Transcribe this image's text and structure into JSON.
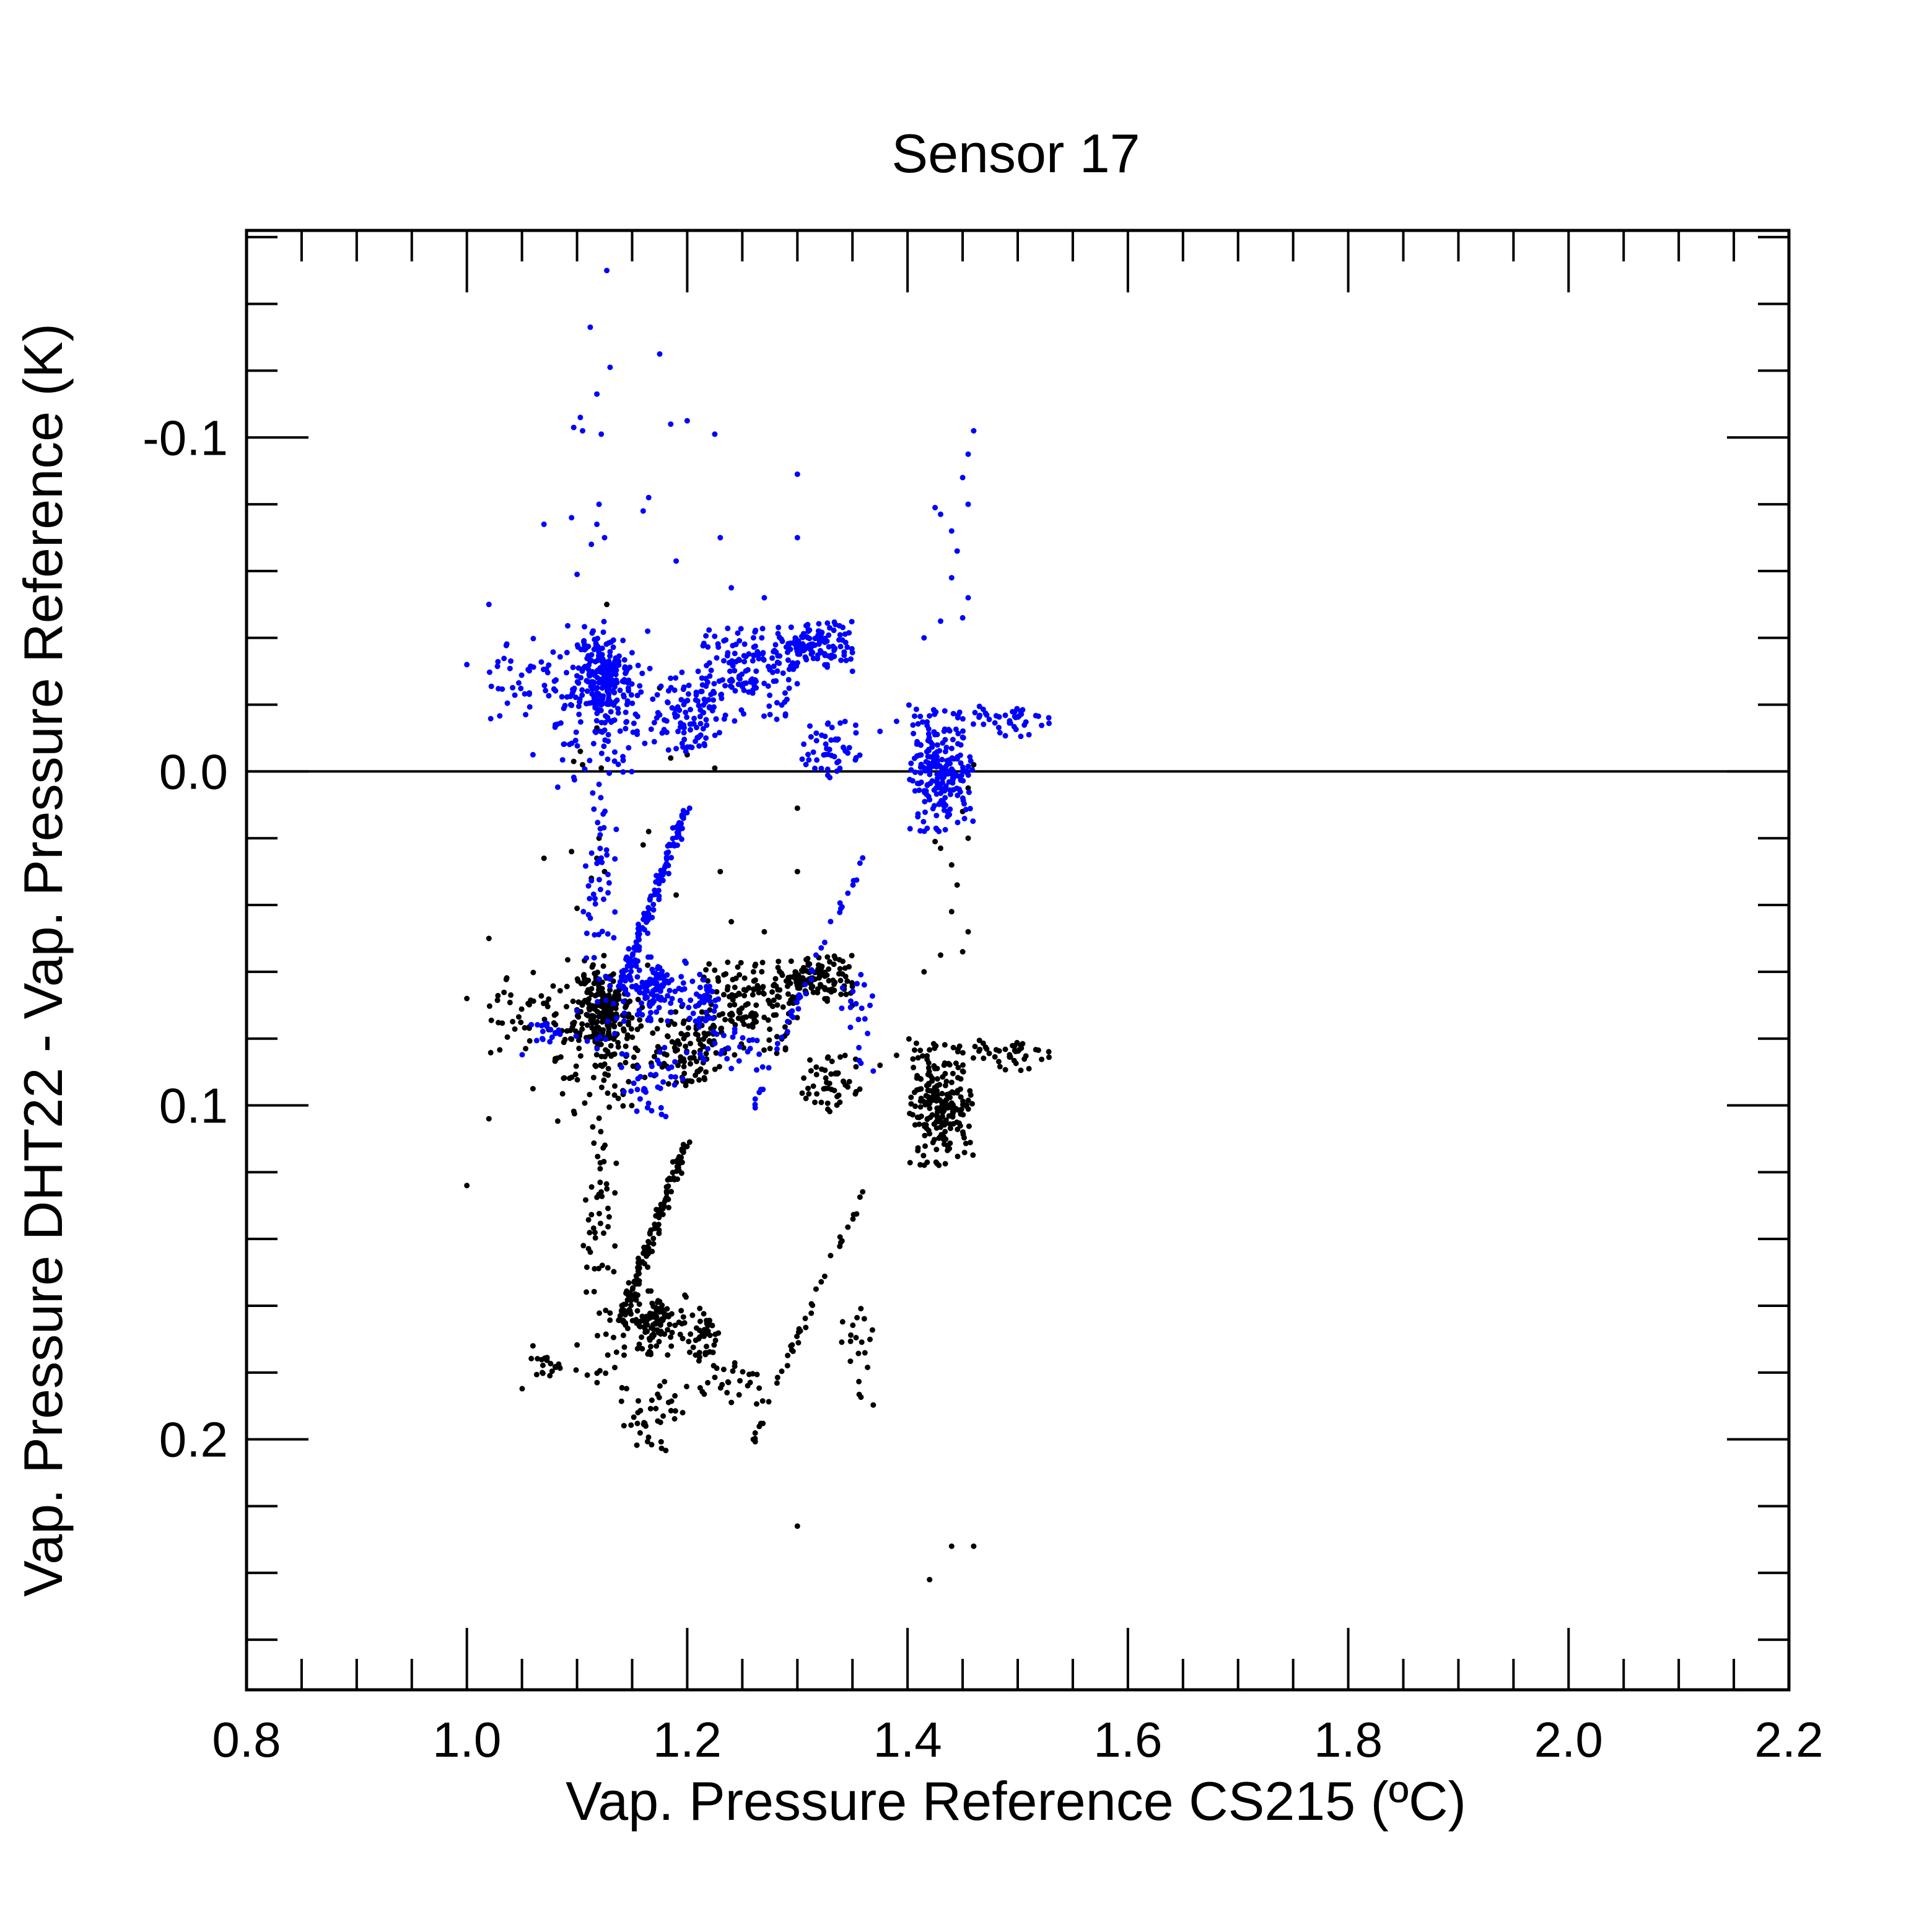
{
  "chart_data": {
    "type": "scatter",
    "title": "Sensor 17",
    "xlabel": "Vap. Pressure Reference CS215 (ºC)",
    "ylabel": "Vap. Pressure DHT22 - Vap. Pressure Reference (K)",
    "xlim": [
      0.8,
      2.2
    ],
    "ylim": [
      0.275,
      -0.162
    ],
    "y_inverted": true,
    "grid": false,
    "zero_line": 0.0,
    "x_ticks": [
      "0.8",
      "1.0",
      "1.2",
      "1.4",
      "1.6",
      "1.8",
      "2.0",
      "2.2"
    ],
    "x_tick_values": [
      0.8,
      1.0,
      1.2,
      1.4,
      1.6,
      1.8,
      2.0,
      2.2
    ],
    "y_ticks": [
      "-0.1",
      "0.0",
      "0.1",
      "0.2"
    ],
    "y_tick_values": [
      -0.1,
      0.0,
      0.1,
      0.2
    ],
    "colors": {
      "series_a": "#0000ff",
      "series_b": "#000000"
    },
    "series": [
      {
        "color": "#0000ff",
        "clusters": [
          {
            "x": [
              1.08,
              1.17
            ],
            "y": [
              -0.045,
              0.005
            ],
            "n": 160
          },
          {
            "x": [
              1.1,
              1.15
            ],
            "y": [
              -0.04,
              -0.02
            ],
            "n": 160
          },
          {
            "x": [
              1.17,
              1.23
            ],
            "y": [
              -0.03,
              -0.005
            ],
            "n": 100
          },
          {
            "x": [
              1.21,
              1.3
            ],
            "y": [
              -0.045,
              -0.015
            ],
            "n": 140
          },
          {
            "x": [
              1.28,
              1.35
            ],
            "y": [
              -0.045,
              -0.03
            ],
            "n": 120
          },
          {
            "x": [
              1.3,
              1.36
            ],
            "y": [
              -0.018,
              0.002
            ],
            "n": 50
          },
          {
            "x": [
              1.4,
              1.46
            ],
            "y": [
              -0.02,
              0.018
            ],
            "n": 220
          },
          {
            "x": [
              1.46,
              1.53
            ],
            "y": [
              -0.02,
              -0.01
            ],
            "n": 40
          },
          {
            "x": [
              1.02,
              1.08
            ],
            "y": [
              -0.04,
              -0.015
            ],
            "n": 40
          },
          {
            "x": [
              1.1,
              1.14
            ],
            "y": [
              0.005,
              0.085
            ],
            "n": 60
          },
          {
            "x": [
              1.14,
              1.2
            ],
            "y": [
              0.055,
              0.075
            ],
            "n": 120
          },
          {
            "x": [
              1.2,
              1.23
            ],
            "y": [
              0.06,
              0.075
            ],
            "n": 40
          },
          {
            "x": [
              1.05,
              1.1
            ],
            "y": [
              0.075,
              0.085
            ],
            "n": 20
          },
          {
            "x": [
              1.14,
              1.2
            ],
            "y": [
              0.08,
              0.105
            ],
            "n": 40
          },
          {
            "x": [
              1.21,
              1.27
            ],
            "y": [
              0.075,
              0.09
            ],
            "n": 30
          },
          {
            "x": [
              1.34,
              1.37
            ],
            "y": [
              0.06,
              0.09
            ],
            "n": 20
          }
        ],
        "trend": {
          "x": [
            1.14,
            1.2
          ],
          "y": [
            0.065,
            0.01
          ],
          "n": 120
        },
        "diagonal": {
          "x": [
            1.26,
            1.36
          ],
          "y": [
            0.1,
            0.025
          ],
          "n": 40
        },
        "points": [
          [
            1.127,
            -0.15
          ],
          [
            1.112,
            -0.133
          ],
          [
            1.118,
            -0.113
          ],
          [
            1.122,
            -0.101
          ],
          [
            1.13,
            -0.121
          ],
          [
            1.175,
            -0.125
          ],
          [
            1.185,
            -0.104
          ],
          [
            1.2,
            -0.105
          ],
          [
            1.225,
            -0.101
          ],
          [
            1.105,
            -0.102
          ],
          [
            1.097,
            -0.103
          ],
          [
            1.103,
            -0.106
          ],
          [
            1.3,
            -0.089
          ],
          [
            1.16,
            -0.078
          ],
          [
            1.165,
            -0.082
          ],
          [
            1.12,
            -0.08
          ],
          [
            1.118,
            -0.074
          ],
          [
            1.125,
            -0.07
          ],
          [
            1.113,
            -0.068
          ],
          [
            1.095,
            -0.076
          ],
          [
            1.07,
            -0.074
          ],
          [
            1.23,
            -0.07
          ],
          [
            1.3,
            -0.07
          ],
          [
            1.19,
            -0.063
          ],
          [
            1.1,
            -0.059
          ],
          [
            1.24,
            -0.055
          ],
          [
            1.27,
            -0.052
          ],
          [
            1.46,
            -0.102
          ],
          [
            1.455,
            -0.095
          ],
          [
            1.45,
            -0.088
          ],
          [
            1.455,
            -0.08
          ],
          [
            1.425,
            -0.079
          ],
          [
            1.43,
            -0.077
          ],
          [
            1.44,
            -0.072
          ],
          [
            1.445,
            -0.066
          ],
          [
            1.44,
            -0.058
          ],
          [
            1.455,
            -0.052
          ],
          [
            1.45,
            -0.046
          ],
          [
            1.43,
            -0.045
          ],
          [
            1.415,
            -0.04
          ],
          [
            1.02,
            -0.05
          ],
          [
            1.0,
            -0.032
          ],
          [
            1.06,
            -0.005
          ],
          [
            1.35,
            -0.03
          ],
          [
            1.39,
            -0.015
          ],
          [
            1.375,
            -0.012
          ]
        ]
      },
      {
        "color": "#000000",
        "offset_of_series_a": 0.1,
        "note_offset": "",
        "points": [
          [
            1.02,
            0.104
          ],
          [
            1.0,
            0.124
          ],
          [
            1.06,
            0.172
          ],
          [
            1.26,
            0.2
          ],
          [
            1.3,
            0.226
          ],
          [
            1.44,
            0.232
          ],
          [
            1.42,
            0.242
          ],
          [
            1.46,
            0.232
          ]
        ]
      }
    ]
  }
}
